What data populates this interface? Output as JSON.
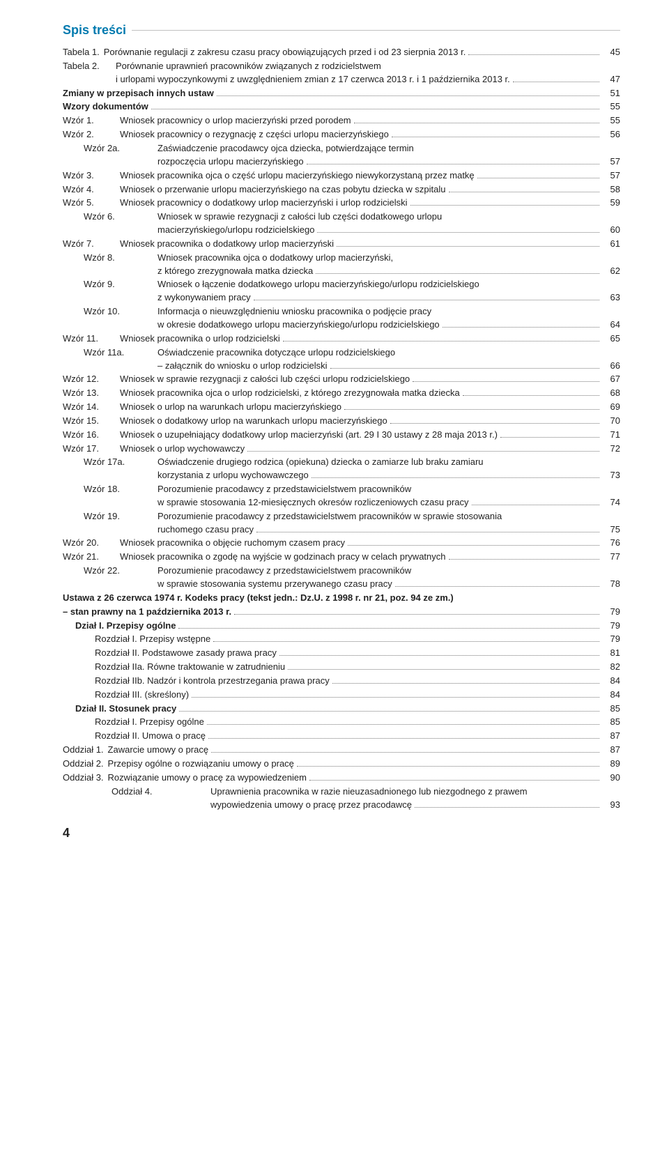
{
  "header_title": "Spis treści",
  "toc_top": [
    {
      "label": "Tabela 1.",
      "text": "Porównanie regulacji z zakresu czasu pracy obowiązujących przed i od 23 sierpnia 2013 r.",
      "page": "45",
      "bold": false
    },
    {
      "label": "Tabela 2.",
      "lines": [
        "Porównanie uprawnień pracowników związanych z rodzicielstwem",
        "i urlopami wypoczynkowymi z uwzględnieniem zmian z 17 czerwca 2013 r. i 1 października 2013 r."
      ],
      "page": "47",
      "bold": false
    },
    {
      "label": "",
      "text": "Zmiany w przepisach innych ustaw",
      "page": "51",
      "bold": true
    },
    {
      "label": "",
      "text": "Wzory dokumentów",
      "page": "55",
      "bold": true
    }
  ],
  "wzory": [
    {
      "label": "Wzór 1.",
      "lines": [
        "Wniosek pracownicy o urlop macierzyński przed porodem"
      ],
      "page": "55"
    },
    {
      "label": "Wzór 2.",
      "lines": [
        "Wniosek pracownicy o rezygnację z części urlopu macierzyńskiego"
      ],
      "page": "56"
    },
    {
      "label": "Wzór 2a.",
      "lines": [
        "Zaświadczenie pracodawcy ojca dziecka, potwierdzające termin",
        "rozpoczęcia urlopu macierzyńskiego"
      ],
      "page": "57"
    },
    {
      "label": "Wzór 3.",
      "lines": [
        "Wniosek pracownika ojca o część urlopu macierzyńskiego niewykorzystaną przez matkę"
      ],
      "page": "57"
    },
    {
      "label": "Wzór 4.",
      "lines": [
        "Wniosek o przerwanie urlopu macierzyńskiego na czas pobytu dziecka w szpitalu"
      ],
      "page": "58"
    },
    {
      "label": "Wzór 5.",
      "lines": [
        "Wniosek pracownicy o dodatkowy urlop macierzyński i urlop rodzicielski"
      ],
      "page": "59"
    },
    {
      "label": "Wzór 6.",
      "lines": [
        "Wniosek w sprawie rezygnacji z całości lub części dodatkowego urlopu",
        "macierzyńskiego/urlopu rodzicielskiego"
      ],
      "page": "60"
    },
    {
      "label": "Wzór 7.",
      "lines": [
        "Wniosek pracownika o dodatkowy urlop macierzyński"
      ],
      "page": "61"
    },
    {
      "label": "Wzór 8.",
      "lines": [
        "Wniosek pracownika ojca o dodatkowy urlop macierzyński,",
        "z którego zrezygnowała matka dziecka"
      ],
      "page": "62"
    },
    {
      "label": "Wzór 9.",
      "lines": [
        "Wniosek o łączenie dodatkowego urlopu macierzyńskiego/urlopu rodzicielskiego",
        "z wykonywaniem pracy"
      ],
      "page": "63"
    },
    {
      "label": "Wzór 10.",
      "lines": [
        "Informacja o nieuwzględnieniu wniosku pracownika o podjęcie pracy",
        "w okresie dodatkowego urlopu macierzyńskiego/urlopu rodzicielskiego"
      ],
      "page": "64"
    },
    {
      "label": "Wzór 11.",
      "lines": [
        "Wniosek pracownika o urlop rodzicielski"
      ],
      "page": "65"
    },
    {
      "label": "Wzór 11a.",
      "lines": [
        "Oświadczenie pracownika dotyczące urlopu rodzicielskiego",
        "– załącznik do wniosku o urlop rodzicielski"
      ],
      "page": "66"
    },
    {
      "label": "Wzór 12.",
      "lines": [
        "Wniosek w sprawie rezygnacji z całości lub części urlopu rodzicielskiego"
      ],
      "page": "67"
    },
    {
      "label": "Wzór 13.",
      "lines": [
        "Wniosek pracownika ojca o urlop rodzicielski, z którego zrezygnowała matka dziecka"
      ],
      "page": "68"
    },
    {
      "label": "Wzór 14.",
      "lines": [
        "Wniosek o urlop na warunkach urlopu macierzyńskiego"
      ],
      "page": "69"
    },
    {
      "label": "Wzór 15.",
      "lines": [
        "Wniosek o dodatkowy urlop na warunkach urlopu macierzyńskiego"
      ],
      "page": "70"
    },
    {
      "label": "Wzór 16.",
      "lines": [
        "Wniosek o uzupełniający dodatkowy urlop macierzyński (art. 29 I 30 ustawy z 28 maja 2013 r.)"
      ],
      "page": "71"
    },
    {
      "label": "Wzór 17.",
      "lines": [
        "Wniosek o urlop wychowawczy"
      ],
      "page": "72"
    },
    {
      "label": "Wzór 17a.",
      "lines": [
        "Oświadczenie drugiego rodzica (opiekuna) dziecka o zamiarze lub braku zamiaru",
        "korzystania z urlopu wychowawczego"
      ],
      "page": "73"
    },
    {
      "label": "Wzór 18.",
      "lines": [
        "Porozumienie pracodawcy z przedstawicielstwem pracowników",
        "w sprawie stosowania 12-miesięcznych okresów rozliczeniowych czasu pracy"
      ],
      "page": "74"
    },
    {
      "label": "Wzór 19.",
      "lines": [
        "Porozumienie pracodawcy z przedstawicielstwem pracowników w sprawie stosowania",
        "ruchomego czasu pracy"
      ],
      "page": "75"
    },
    {
      "label": "Wzór 20.",
      "lines": [
        "Wniosek pracownika o objęcie ruchomym czasem pracy"
      ],
      "page": "76"
    },
    {
      "label": "Wzór 21.",
      "lines": [
        "Wniosek pracownika o zgodę na wyjście w godzinach pracy w celach prywatnych"
      ],
      "page": "77"
    },
    {
      "label": "Wzór 22.",
      "lines": [
        "Porozumienie pracodawcy z przedstawicielstwem pracowników",
        "w sprawie stosowania systemu przerywanego czasu pracy"
      ],
      "page": "78"
    }
  ],
  "ustawa_heading_1": "Ustawa z 26 czerwca 1974 r. Kodeks pracy (tekst jedn.: Dz.U. z 1998 r. nr 21, poz. 94 ze zm.)",
  "ustawa_heading_2": "– stan prawny na 1 października 2013 r.",
  "ustawa_page": "79",
  "sections": [
    {
      "indent": 1,
      "label": "",
      "text": "Dział I. Przepisy ogólne",
      "page": "79",
      "bold": true
    },
    {
      "indent": 2,
      "label": "",
      "text": "Rozdział I. Przepisy wstępne",
      "page": "79"
    },
    {
      "indent": 2,
      "label": "",
      "text": "Rozdział II. Podstawowe zasady prawa pracy",
      "page": "81"
    },
    {
      "indent": 2,
      "label": "",
      "text": "Rozdział IIa. Równe traktowanie w zatrudnieniu",
      "page": "82"
    },
    {
      "indent": 2,
      "label": "",
      "text": "Rozdział IIb. Nadzór i kontrola przestrzegania prawa pracy",
      "page": "84"
    },
    {
      "indent": 2,
      "label": "",
      "text": "Rozdział III. (skreślony)",
      "page": "84"
    },
    {
      "indent": 1,
      "label": "",
      "text": "Dział II. Stosunek pracy",
      "page": "85",
      "bold": true
    },
    {
      "indent": 2,
      "label": "",
      "text": "Rozdział I. Przepisy ogólne",
      "page": "85"
    },
    {
      "indent": 2,
      "label": "",
      "text": "Rozdział II. Umowa o pracę",
      "page": "87"
    },
    {
      "indent": 3,
      "label": "Oddział 1.",
      "text": "Zawarcie umowy o pracę",
      "page": "87"
    },
    {
      "indent": 3,
      "label": "Oddział 2.",
      "text": "Przepisy ogólne o rozwiązaniu umowy o pracę",
      "page": "89"
    },
    {
      "indent": 3,
      "label": "Oddział 3.",
      "text": "Rozwiązanie umowy o pracę za wypowiedzeniem",
      "page": "90"
    },
    {
      "indent": 3,
      "label": "Oddział 4.",
      "lines": [
        "Uprawnienia pracownika w razie nieuzasadnionego lub niezgodnego z prawem",
        "wypowiedzenia umowy o pracę przez pracodawcę"
      ],
      "page": "93"
    }
  ],
  "footer_page": "4"
}
